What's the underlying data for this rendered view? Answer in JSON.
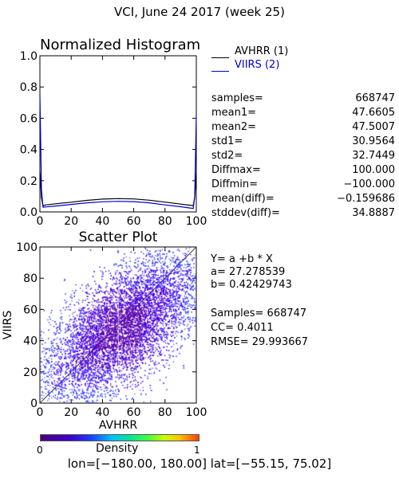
{
  "title": "VCI,  June 24 2017 (week 25)",
  "colors": {
    "avhrr": "#000000",
    "viirs": "#0000cc",
    "fit_line": "#000000"
  },
  "chart_data": [
    {
      "type": "line",
      "title": "Normalized Histogram",
      "xlim": [
        0,
        100
      ],
      "ylim": [
        0.0,
        1.0
      ],
      "xticks": [
        "0",
        "20",
        "40",
        "60",
        "80",
        "100"
      ],
      "yticks": [
        "0.0",
        "0.2",
        "0.4",
        "0.6",
        "0.8",
        "1.0"
      ],
      "series": [
        {
          "name": "AVHRR (1)",
          "color": "#000000",
          "x": [
            0,
            1,
            2,
            4,
            10,
            20,
            30,
            40,
            50,
            60,
            70,
            80,
            90,
            96,
            98,
            99,
            100
          ],
          "y": [
            0.26,
            0.09,
            0.04,
            0.045,
            0.052,
            0.062,
            0.074,
            0.082,
            0.085,
            0.083,
            0.075,
            0.063,
            0.05,
            0.043,
            0.04,
            0.09,
            0.25
          ]
        },
        {
          "name": "VIIRS (2)",
          "color": "#0000cc",
          "x": [
            0,
            1,
            2,
            4,
            10,
            20,
            30,
            40,
            50,
            60,
            70,
            80,
            90,
            96,
            98,
            99,
            100
          ],
          "y": [
            0.75,
            0.14,
            0.03,
            0.032,
            0.038,
            0.048,
            0.058,
            0.065,
            0.068,
            0.066,
            0.058,
            0.045,
            0.033,
            0.025,
            0.022,
            0.1,
            0.62
          ]
        }
      ],
      "stats": [
        {
          "label": "samples=",
          "value": "668747"
        },
        {
          "label": "mean1=",
          "value": "47.6605"
        },
        {
          "label": "mean2=",
          "value": "47.5007"
        },
        {
          "label": "std1=",
          "value": "30.9564"
        },
        {
          "label": "std2=",
          "value": "32.7449"
        },
        {
          "label": "Diffmax=",
          "value": "100.000"
        },
        {
          "label": "Diffmin=",
          "value": "-100.000"
        },
        {
          "label": "mean(diff)=",
          "value": "-0.159686"
        },
        {
          "label": "stddev(diff)=",
          "value": "34.8887"
        }
      ]
    },
    {
      "type": "scatter",
      "title": "Scatter Plot",
      "xlabel": "AVHRR",
      "ylabel": "VIIRS",
      "xlim": [
        0,
        100
      ],
      "ylim": [
        0,
        100
      ],
      "xticks": [
        "0",
        "20",
        "40",
        "60",
        "80",
        "100"
      ],
      "yticks": [
        "0",
        "20",
        "40",
        "60",
        "80",
        "100"
      ],
      "fit": {
        "equation": "Y= a +b * X",
        "a_label": "a= 27.278539",
        "b_label": "b= 0.42429743",
        "a": 27.278539,
        "b": 0.42429743
      },
      "summary": {
        "samples": "Samples= 668747",
        "cc": "CC=  0.4011",
        "rmse": "RMSE= 29.993667"
      },
      "density_scale": {
        "label": "Density",
        "min": "0",
        "max": "1"
      },
      "one_to_one_line": true
    }
  ],
  "footer": "lon=[-180.00, 180.00] lat=[-55.15, 75.02]"
}
